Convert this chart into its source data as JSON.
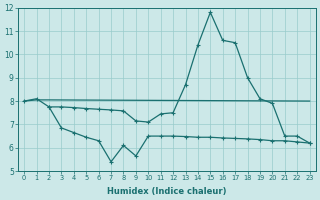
{
  "title": "",
  "xlabel": "Humidex (Indice chaleur)",
  "bg_color": "#cce8e8",
  "grid_color": "#99cccc",
  "line_color": "#1a7070",
  "xlim": [
    -0.5,
    23.5
  ],
  "ylim": [
    5,
    12
  ],
  "yticks": [
    5,
    6,
    7,
    8,
    9,
    10,
    11,
    12
  ],
  "xticks": [
    0,
    1,
    2,
    3,
    4,
    5,
    6,
    7,
    8,
    9,
    10,
    11,
    12,
    13,
    14,
    15,
    16,
    17,
    18,
    19,
    20,
    21,
    22,
    23
  ],
  "line1_x": [
    0,
    1,
    2,
    3,
    4,
    5,
    6,
    7,
    8,
    9,
    10,
    11,
    12,
    13,
    14,
    15,
    16,
    17,
    18,
    19,
    20,
    21,
    22,
    23
  ],
  "line1_y": [
    8.0,
    8.1,
    7.75,
    7.75,
    7.72,
    7.68,
    7.65,
    7.62,
    7.58,
    7.15,
    7.1,
    7.45,
    7.5,
    8.7,
    10.4,
    11.8,
    10.6,
    10.5,
    9.0,
    8.1,
    7.9,
    6.5,
    6.5,
    6.2
  ],
  "line2_x": [
    0,
    1,
    2,
    23
  ],
  "line2_y": [
    8.0,
    8.05,
    8.05,
    8.0
  ],
  "line3_x": [
    2,
    3,
    4,
    5,
    6,
    7,
    8,
    9,
    10,
    11,
    12,
    13,
    14,
    15,
    16,
    17,
    18,
    19,
    20,
    21,
    22,
    23
  ],
  "line3_y": [
    7.75,
    6.85,
    6.65,
    6.45,
    6.3,
    5.4,
    6.1,
    5.65,
    6.5,
    6.5,
    6.5,
    6.48,
    6.45,
    6.45,
    6.42,
    6.4,
    6.38,
    6.35,
    6.3,
    6.3,
    6.25,
    6.2
  ]
}
